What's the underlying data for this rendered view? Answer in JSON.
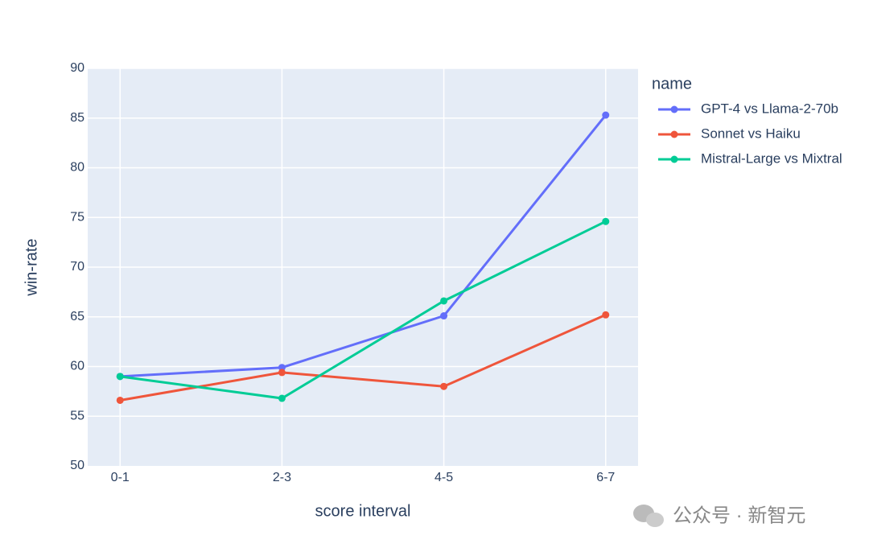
{
  "chart_data": {
    "type": "line",
    "xlabel": "score interval",
    "ylabel": "win-rate",
    "legend_title": "name",
    "categories": [
      "0-1",
      "2-3",
      "4-5",
      "6-7"
    ],
    "series": [
      {
        "name": "GPT-4 vs Llama-2-70b",
        "color": "#636efa",
        "values": [
          59.0,
          59.9,
          65.1,
          85.3
        ]
      },
      {
        "name": "Sonnet vs Haiku",
        "color": "#EF553B",
        "values": [
          56.6,
          59.4,
          58.0,
          65.2
        ]
      },
      {
        "name": "Mistral-Large vs Mixtral",
        "color": "#00cc96",
        "values": [
          59.0,
          56.8,
          66.6,
          74.6
        ]
      }
    ],
    "ylim": [
      50,
      90
    ],
    "yticks": [
      50,
      55,
      60,
      65,
      70,
      75,
      80,
      85,
      90
    ],
    "grid": true,
    "legend": "right"
  },
  "watermark": "公众号 · 新智元"
}
